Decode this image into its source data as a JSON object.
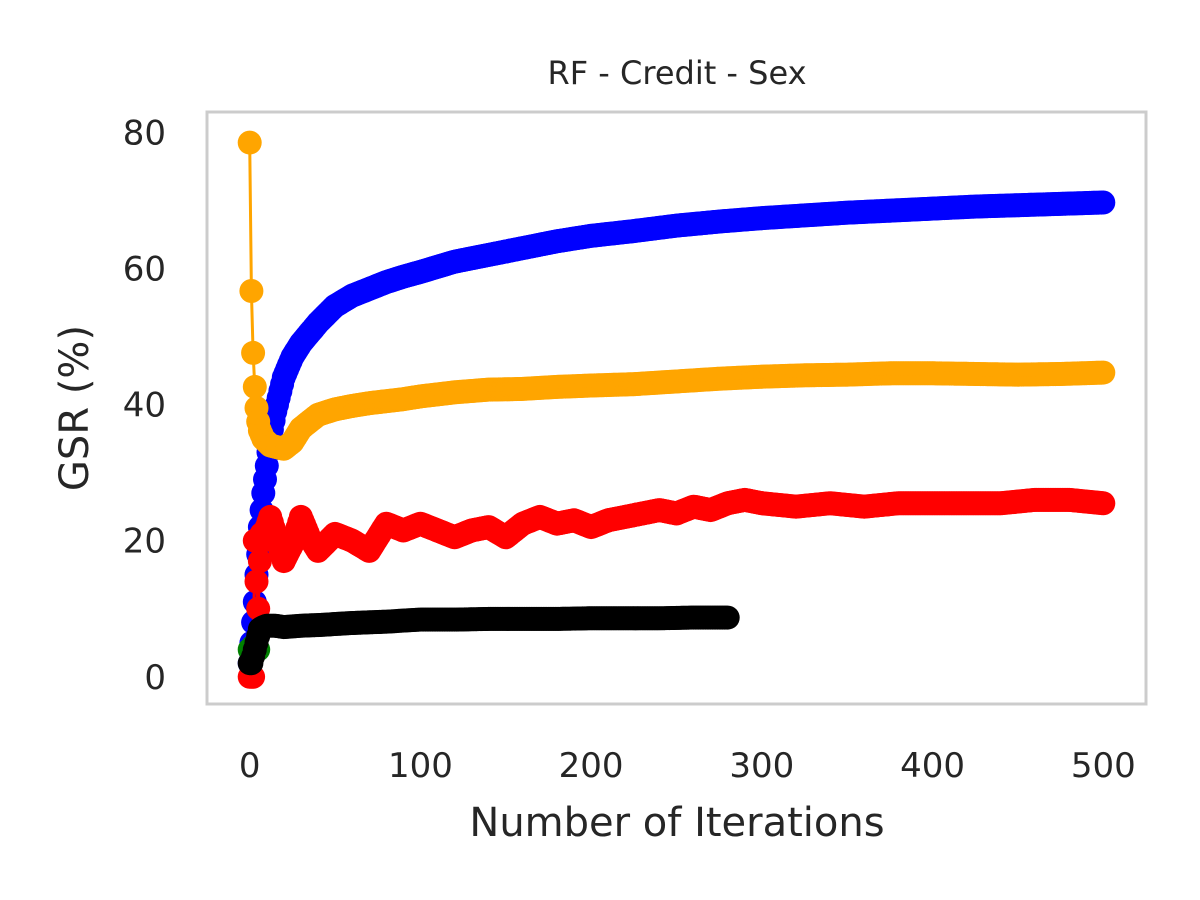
{
  "chart_data": {
    "type": "line",
    "title": "RF - Credit - Sex",
    "xlabel": "Number of Iterations",
    "ylabel": "GSR (%)",
    "xlim": [
      -25,
      525
    ],
    "ylim": [
      -4,
      83
    ],
    "xticks": [
      0,
      100,
      200,
      300,
      400,
      500
    ],
    "xtick_labels": [
      "0",
      "100",
      "200",
      "300",
      "400",
      "500"
    ],
    "yticks": [
      0,
      20,
      40,
      60,
      80
    ],
    "ytick_labels": [
      "0",
      "20",
      "40",
      "60",
      "80"
    ],
    "grid": false,
    "legend": "none",
    "series": [
      {
        "color": "#0000ff",
        "x": [
          0,
          1,
          2,
          3,
          4,
          5,
          6,
          8,
          10,
          12,
          15,
          20,
          25,
          30,
          40,
          50,
          60,
          70,
          80,
          90,
          100,
          120,
          140,
          160,
          180,
          200,
          225,
          250,
          275,
          300,
          325,
          350,
          375,
          400,
          425,
          450,
          475,
          500
        ],
        "y": [
          2,
          5,
          8,
          11,
          15,
          18,
          22,
          27,
          31,
          35,
          39,
          44,
          47,
          49,
          52,
          54.5,
          56,
          57,
          58,
          58.8,
          59.5,
          61,
          62,
          63,
          64,
          64.8,
          65.5,
          66.3,
          66.9,
          67.4,
          67.8,
          68.2,
          68.5,
          68.8,
          69.1,
          69.3,
          69.5,
          69.7
        ]
      },
      {
        "color": "#ffa500",
        "x": [
          0,
          1,
          2,
          3,
          4,
          5,
          6,
          8,
          10,
          12,
          15,
          20,
          25,
          30,
          40,
          50,
          60,
          70,
          80,
          90,
          100,
          120,
          140,
          160,
          180,
          200,
          225,
          250,
          275,
          300,
          325,
          350,
          375,
          400,
          425,
          450,
          475,
          500
        ],
        "y": [
          78.5,
          56.7,
          47.6,
          42.6,
          39.5,
          37.5,
          36.2,
          35,
          34.5,
          34,
          33.8,
          33.5,
          34.5,
          36.5,
          38.5,
          39.3,
          39.8,
          40.2,
          40.5,
          40.8,
          41.2,
          41.8,
          42.2,
          42.3,
          42.6,
          42.8,
          43,
          43.4,
          43.8,
          44.1,
          44.3,
          44.4,
          44.6,
          44.6,
          44.5,
          44.4,
          44.5,
          44.7
        ]
      },
      {
        "color": "#ff0000",
        "x": [
          0,
          2,
          3,
          4,
          5,
          6,
          7,
          8,
          10,
          12,
          15,
          20,
          25,
          30,
          35,
          40,
          50,
          60,
          70,
          80,
          90,
          100,
          110,
          120,
          130,
          140,
          150,
          160,
          170,
          180,
          190,
          200,
          210,
          220,
          230,
          240,
          250,
          260,
          270,
          280,
          290,
          300,
          320,
          340,
          360,
          380,
          400,
          420,
          440,
          460,
          480,
          500
        ],
        "y": [
          0,
          0,
          20,
          14,
          10,
          17,
          21,
          20,
          22,
          23.5,
          21,
          17,
          19.5,
          23.5,
          20.5,
          18.5,
          21,
          20,
          18.5,
          22.5,
          21.5,
          22.5,
          21.5,
          20.5,
          21.5,
          22,
          20.5,
          22.5,
          23.5,
          22.5,
          23,
          22,
          23,
          23.5,
          24,
          24.5,
          24,
          25,
          24.5,
          25.5,
          26,
          25.5,
          25,
          25.5,
          25,
          25.5,
          25.5,
          25.5,
          25.5,
          26,
          26,
          25.5
        ]
      },
      {
        "color": "#008000",
        "x": [
          0,
          1,
          2,
          3,
          5
        ],
        "y": [
          4,
          4,
          4.5,
          4,
          4
        ]
      },
      {
        "color": "#000000",
        "x": [
          0,
          1,
          2,
          3,
          4,
          5,
          6,
          8,
          10,
          15,
          20,
          30,
          40,
          60,
          80,
          100,
          120,
          140,
          160,
          180,
          200,
          220,
          240,
          260,
          280
        ],
        "y": [
          2,
          2,
          3,
          4,
          5,
          6,
          7,
          7.3,
          7.5,
          7.5,
          7.3,
          7.5,
          7.6,
          7.9,
          8.1,
          8.4,
          8.4,
          8.5,
          8.5,
          8.5,
          8.6,
          8.6,
          8.6,
          8.7,
          8.7
        ]
      }
    ]
  }
}
